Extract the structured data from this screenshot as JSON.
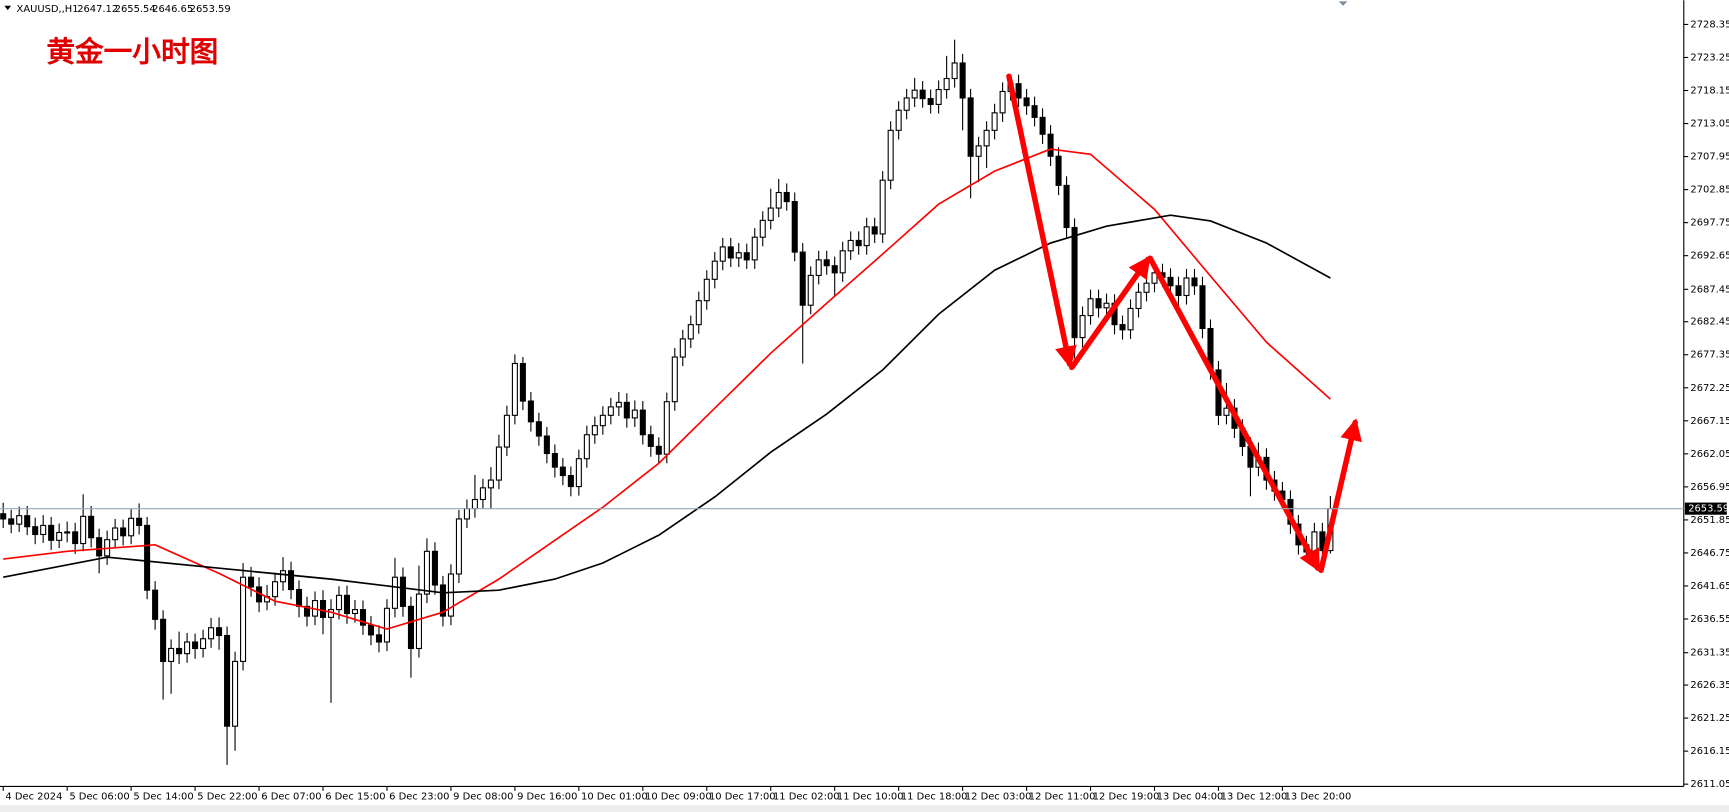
{
  "chart_data": {
    "type": "candlestick",
    "title": "黄金一小时图",
    "symbol": "XAUUSD,,H1",
    "open": [
      2652.8,
      2652.0,
      2651.2,
      2652.5,
      2650.8,
      2649.6,
      2651.0,
      2648.7,
      2649.9,
      2650.0,
      2648.2,
      2652.4,
      2649.1,
      2646.3,
      2648.8,
      2650.6,
      2649.4,
      2652.1,
      2651.0,
      2641.0,
      2636.5,
      2630.0,
      2632.0,
      2631.2,
      2633.0,
      2632.0,
      2633.5,
      2635.2,
      2634.0,
      2620.0,
      2630.0,
      2643.0,
      2641.5,
      2639.2,
      2640.0,
      2642.3,
      2644.0,
      2641.1,
      2638.5,
      2637.0,
      2639.4,
      2636.8,
      2638.0,
      2640.2,
      2637.4,
      2638.0,
      2635.6,
      2634.1,
      2633.0,
      2638.2,
      2643.0,
      2638.5,
      2632.0,
      2640.4,
      2647.0,
      2641.8,
      2637.0,
      2643.5,
      2652.0,
      2653.6,
      2655.0,
      2656.8,
      2658.0,
      2663.1,
      2668.0,
      2676.0,
      2670.2,
      2667.0,
      2664.8,
      2662.1,
      2660.0,
      2658.7,
      2657.0,
      2661.3,
      2665.0,
      2666.4,
      2668.0,
      2669.3,
      2670.0,
      2667.6,
      2668.8,
      2665.0,
      2663.2,
      2662.0,
      2670.1,
      2677.0,
      2679.8,
      2682.0,
      2685.7,
      2689.0,
      2691.8,
      2694.0,
      2692.3,
      2693.1,
      2692.0,
      2695.5,
      2698.1,
      2700.0,
      2702.4,
      2701.0,
      2693.2,
      2685.0,
      2689.6,
      2692.0,
      2691.1,
      2690.0,
      2693.4,
      2695.0,
      2694.2,
      2697.1,
      2696.0,
      2704.3,
      2712.0,
      2715.1,
      2717.0,
      2718.2,
      2716.9,
      2716.0,
      2718.3,
      2720.0,
      2722.4,
      2717.0,
      2708.0,
      2709.6,
      2712.0,
      2714.7,
      2718.0,
      2719.2,
      2717.0,
      2715.8,
      2714.0,
      2711.4,
      2708.0,
      2703.5,
      2697.0,
      2680.0,
      2683.4,
      2686.0,
      2684.6,
      2685.3,
      2682.0,
      2681.2,
      2684.5,
      2687.0,
      2688.4,
      2690.0,
      2689.3,
      2688.0,
      2686.5,
      2689.2,
      2688.0,
      2681.4,
      2675.0,
      2668.0,
      2669.1,
      2666.0,
      2663.2,
      2660.0,
      2661.5,
      2658.0,
      2656.3,
      2655.0,
      2651.2,
      2648.0,
      2646.9,
      2650.0,
      2647.12
    ],
    "high": [
      2654.5,
      2653.4,
      2653.9,
      2654.0,
      2652.2,
      2652.6,
      2652.3,
      2651.3,
      2651.6,
      2651.4,
      2655.8,
      2654.0,
      2650.5,
      2650.2,
      2652.0,
      2651.9,
      2653.5,
      2654.4,
      2652.3,
      2642.4,
      2637.9,
      2633.4,
      2634.6,
      2634.4,
      2634.3,
      2634.9,
      2636.7,
      2636.8,
      2635.4,
      2631.5,
      2645.2,
      2644.6,
      2643.0,
      2641.8,
      2643.7,
      2646.1,
      2645.4,
      2642.5,
      2640.0,
      2640.8,
      2641.0,
      2639.6,
      2641.6,
      2641.7,
      2639.5,
      2639.4,
      2637.0,
      2635.6,
      2639.6,
      2646.0,
      2644.5,
      2640.0,
      2644.8,
      2649.0,
      2648.4,
      2643.2,
      2645.0,
      2653.4,
      2655.0,
      2658.8,
      2658.2,
      2660.0,
      2665.0,
      2669.5,
      2677.4,
      2677.0,
      2671.6,
      2668.4,
      2666.2,
      2663.5,
      2661.4,
      2660.1,
      2662.7,
      2666.4,
      2667.8,
      2669.4,
      2670.7,
      2671.6,
      2671.4,
      2670.3,
      2670.2,
      2666.4,
      2664.6,
      2671.5,
      2678.4,
      2681.2,
      2683.4,
      2687.1,
      2690.4,
      2693.2,
      2695.4,
      2695.4,
      2694.6,
      2694.5,
      2696.9,
      2699.5,
      2703.0,
      2704.5,
      2703.8,
      2702.4,
      2694.6,
      2691.0,
      2693.4,
      2693.4,
      2692.5,
      2694.8,
      2696.4,
      2696.4,
      2698.5,
      2698.5,
      2705.7,
      2713.4,
      2716.5,
      2718.4,
      2720.1,
      2719.6,
      2718.3,
      2719.7,
      2723.5,
      2726.0,
      2723.8,
      2718.4,
      2711.0,
      2713.4,
      2716.1,
      2719.4,
      2720.6,
      2720.6,
      2718.4,
      2717.2,
      2715.4,
      2712.8,
      2709.4,
      2704.9,
      2698.4,
      2684.8,
      2687.4,
      2687.4,
      2686.8,
      2686.7,
      2683.4,
      2685.9,
      2688.4,
      2689.8,
      2691.6,
      2691.4,
      2690.7,
      2689.4,
      2690.6,
      2690.6,
      2689.4,
      2682.8,
      2676.4,
      2673.0,
      2670.5,
      2667.4,
      2664.6,
      2663.8,
      2662.9,
      2659.4,
      2657.7,
      2656.4,
      2652.6,
      2649.4,
      2651.4,
      2651.4,
      2655.54
    ],
    "low": [
      2650.6,
      2649.8,
      2650.0,
      2649.5,
      2648.1,
      2648.3,
      2647.2,
      2647.5,
      2648.4,
      2646.6,
      2647.0,
      2647.6,
      2643.6,
      2644.9,
      2647.4,
      2647.9,
      2648.1,
      2649.6,
      2639.6,
      2634.9,
      2624.1,
      2625.0,
      2629.6,
      2629.8,
      2630.4,
      2630.6,
      2632.1,
      2631.8,
      2614.0,
      2616.2,
      2628.6,
      2640.0,
      2637.6,
      2637.9,
      2638.6,
      2640.9,
      2639.6,
      2636.8,
      2635.4,
      2635.6,
      2634.2,
      2623.6,
      2636.5,
      2635.8,
      2636.0,
      2634.1,
      2632.5,
      2631.4,
      2631.6,
      2636.8,
      2636.9,
      2627.5,
      2630.6,
      2639.0,
      2640.3,
      2635.4,
      2635.6,
      2642.1,
      2650.6,
      2652.2,
      2653.6,
      2653.5,
      2656.6,
      2661.7,
      2666.6,
      2668.8,
      2665.5,
      2663.3,
      2660.6,
      2658.4,
      2657.2,
      2655.5,
      2655.6,
      2659.9,
      2663.6,
      2665.0,
      2666.6,
      2667.9,
      2666.1,
      2666.2,
      2663.5,
      2661.6,
      2660.5,
      2660.6,
      2668.7,
      2675.6,
      2678.4,
      2680.6,
      2684.3,
      2687.6,
      2690.4,
      2690.9,
      2690.9,
      2690.6,
      2690.6,
      2694.1,
      2696.7,
      2698.6,
      2699.6,
      2691.8,
      2676.0,
      2683.6,
      2688.2,
      2689.7,
      2686.5,
      2688.6,
      2692.0,
      2692.8,
      2692.8,
      2694.6,
      2694.6,
      2702.9,
      2710.6,
      2713.7,
      2715.6,
      2715.5,
      2714.6,
      2714.6,
      2716.9,
      2718.6,
      2712.0,
      2701.5,
      2704.0,
      2706.2,
      2710.6,
      2713.3,
      2716.6,
      2715.6,
      2714.4,
      2712.6,
      2709.9,
      2706.5,
      2702.0,
      2695.5,
      2676.8,
      2678.5,
      2682.0,
      2683.1,
      2683.2,
      2680.5,
      2679.7,
      2679.8,
      2683.1,
      2685.6,
      2687.0,
      2687.8,
      2686.5,
      2685.0,
      2685.1,
      2686.6,
      2679.9,
      2673.5,
      2666.5,
      2666.6,
      2664.5,
      2661.7,
      2655.5,
      2658.6,
      2656.5,
      2654.8,
      2653.5,
      2649.7,
      2646.5,
      2645.4,
      2645.5,
      2645.8,
      2646.65
    ],
    "close": [
      2652.0,
      2651.2,
      2652.5,
      2650.8,
      2649.6,
      2651.0,
      2648.7,
      2649.9,
      2650.0,
      2648.2,
      2652.4,
      2649.1,
      2646.3,
      2648.8,
      2650.6,
      2649.4,
      2652.1,
      2651.0,
      2641.0,
      2636.5,
      2630.0,
      2632.0,
      2631.2,
      2633.0,
      2632.0,
      2633.5,
      2635.2,
      2634.0,
      2620.0,
      2630.0,
      2643.0,
      2641.5,
      2639.2,
      2640.0,
      2642.3,
      2644.0,
      2641.1,
      2638.5,
      2637.0,
      2639.4,
      2636.8,
      2638.0,
      2640.2,
      2637.4,
      2638.0,
      2635.6,
      2634.1,
      2633.0,
      2638.2,
      2643.0,
      2638.5,
      2632.0,
      2640.4,
      2647.0,
      2641.8,
      2637.0,
      2643.5,
      2652.0,
      2653.6,
      2655.0,
      2656.8,
      2658.0,
      2663.1,
      2668.0,
      2676.0,
      2670.2,
      2667.0,
      2664.8,
      2662.1,
      2660.0,
      2658.7,
      2657.0,
      2661.3,
      2665.0,
      2666.4,
      2668.0,
      2669.3,
      2670.0,
      2667.6,
      2668.8,
      2665.0,
      2663.2,
      2662.0,
      2670.1,
      2677.0,
      2679.8,
      2682.0,
      2685.7,
      2689.0,
      2691.8,
      2694.0,
      2692.3,
      2693.1,
      2692.0,
      2695.5,
      2698.1,
      2700.0,
      2702.4,
      2701.0,
      2693.2,
      2685.0,
      2689.6,
      2692.0,
      2691.1,
      2690.0,
      2693.4,
      2695.0,
      2694.2,
      2697.1,
      2696.0,
      2704.3,
      2712.0,
      2715.1,
      2717.0,
      2718.2,
      2716.9,
      2716.0,
      2718.3,
      2720.0,
      2722.4,
      2717.0,
      2708.0,
      2709.6,
      2712.0,
      2714.7,
      2718.0,
      2719.2,
      2717.0,
      2715.8,
      2714.0,
      2711.4,
      2708.0,
      2703.5,
      2697.0,
      2680.0,
      2683.4,
      2686.0,
      2684.6,
      2685.3,
      2682.0,
      2681.2,
      2684.5,
      2687.0,
      2688.4,
      2690.0,
      2689.3,
      2688.0,
      2686.5,
      2689.2,
      2688.0,
      2681.4,
      2675.0,
      2668.0,
      2669.1,
      2666.0,
      2663.2,
      2660.0,
      2661.5,
      2658.0,
      2656.3,
      2655.0,
      2651.2,
      2648.0,
      2646.9,
      2650.0,
      2647.12,
      2653.59
    ],
    "up_color": "#ffffff",
    "down_color": "#000000",
    "line_color": "#000000",
    "current_line_color": "#9aa7b3",
    "series": [
      {
        "color": "#ff0000",
        "x": [
          0,
          8,
          19,
          27,
          34,
          41,
          48,
          55,
          62,
          69,
          75,
          82,
          89,
          96,
          103,
          110,
          117,
          124,
          131,
          136,
          144,
          151,
          158,
          166
        ],
        "values": [
          2645.8,
          2647,
          2648,
          2643.6,
          2639.3,
          2637.6,
          2635,
          2637.6,
          2642.7,
          2648.7,
          2653.8,
          2660.6,
          2669.1,
          2677.6,
          2685.3,
          2692.9,
          2700.6,
          2705.7,
          2709.1,
          2708.3,
          2699.8,
          2689.5,
          2679.3,
          2670.5
        ]
      },
      {
        "color": "#000000",
        "x": [
          0,
          13,
          27,
          41,
          55,
          62,
          69,
          75,
          82,
          89,
          96,
          103,
          110,
          117,
          124,
          131,
          138,
          146,
          151,
          158,
          166
        ],
        "values": [
          2643,
          2646.1,
          2644.4,
          2642.7,
          2640.6,
          2641,
          2642.7,
          2645.2,
          2649.5,
          2655.4,
          2662.3,
          2668.2,
          2675,
          2683.6,
          2690.4,
          2694.6,
          2697.2,
          2698.9,
          2698,
          2694.6,
          2689.2
        ]
      }
    ],
    "xlim": [
      -0.4,
      210.2
    ],
    "ylim": [
      2610.7,
      2731.24
    ],
    "yticks": [
      2728.35,
      2723.25,
      2718.15,
      2713.05,
      2707.95,
      2702.85,
      2697.75,
      2692.65,
      2687.45,
      2682.45,
      2677.35,
      2672.25,
      2667.15,
      2662.05,
      2656.95,
      2651.85,
      2646.75,
      2641.65,
      2636.55,
      2631.35,
      2626.35,
      2621.25,
      2616.15,
      2611.05
    ],
    "xticks": [
      {
        "value": 0,
        "label": "4 Dec 2024"
      },
      {
        "value": 8,
        "label": "5 Dec 06:00"
      },
      {
        "value": 16,
        "label": "5 Dec 14:00"
      },
      {
        "value": 24,
        "label": "5 Dec 22:00"
      },
      {
        "value": 32,
        "label": "6 Dec 07:00"
      },
      {
        "value": 40,
        "label": "6 Dec 15:00"
      },
      {
        "value": 48,
        "label": "6 Dec 23:00"
      },
      {
        "value": 56,
        "label": "9 Dec 08:00"
      },
      {
        "value": 64,
        "label": "9 Dec 16:00"
      },
      {
        "value": 72,
        "label": "10 Dec 01:00"
      },
      {
        "value": 80,
        "label": "10 Dec 09:00"
      },
      {
        "value": 88,
        "label": "10 Dec 17:00"
      },
      {
        "value": 96,
        "label": "11 Dec 02:00"
      },
      {
        "value": 104,
        "label": "11 Dec 10:00"
      },
      {
        "value": 112,
        "label": "11 Dec 18:00"
      },
      {
        "value": 120,
        "label": "12 Dec 03:00"
      },
      {
        "value": 128,
        "label": "12 Dec 11:00"
      },
      {
        "value": 136,
        "label": "12 Dec 19:00"
      },
      {
        "value": 144,
        "label": "13 Dec 04:00"
      },
      {
        "value": 152,
        "label": "13 Dec 12:00"
      },
      {
        "value": 160,
        "label": "13 Dec 20:00"
      }
    ]
  }
}
